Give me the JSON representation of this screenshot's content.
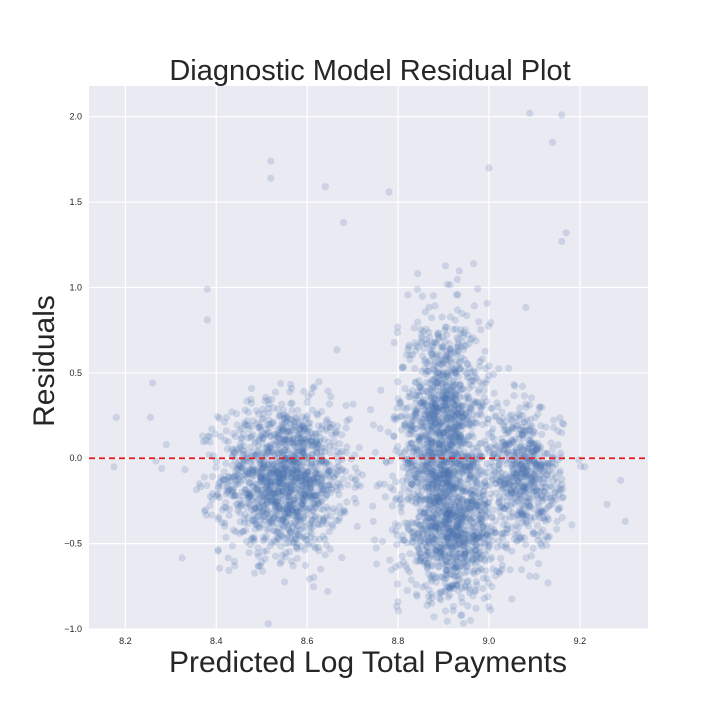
{
  "chart_data": {
    "type": "scatter",
    "title": "Diagnostic Model Residual Plot",
    "xlabel": "Predicted Log Total Payments",
    "ylabel": "Residuals",
    "xlim": [
      8.12,
      9.35
    ],
    "ylim": [
      -1.0,
      2.18
    ],
    "xticks": [
      "8.2",
      "8.4",
      "8.6",
      "8.8",
      "9.0",
      "9.2"
    ],
    "yticks": [
      "−1.0",
      "−0.5",
      "0.0",
      "0.5",
      "1.0",
      "1.5",
      "2.0"
    ],
    "grid": true,
    "legend": "none",
    "colors": {
      "points": "#4c72b0",
      "reference_line": "#e41a1c",
      "background": "#eaeaf2"
    },
    "reference_line": {
      "y": 0.0,
      "style": "dashed"
    },
    "clusters": [
      {
        "x_center": 8.55,
        "y_center": -0.12,
        "x_spread": 0.07,
        "y_spread": 0.22,
        "count": 1400
      },
      {
        "x_center": 8.9,
        "y_center": 0.12,
        "x_spread": 0.05,
        "y_spread": 0.35,
        "count": 1400
      },
      {
        "x_center": 8.92,
        "y_center": -0.45,
        "x_spread": 0.05,
        "y_spread": 0.18,
        "count": 700
      },
      {
        "x_center": 9.08,
        "y_center": -0.12,
        "x_spread": 0.04,
        "y_spread": 0.2,
        "count": 600
      }
    ],
    "points": [
      [
        8.18,
        0.24
      ],
      [
        8.175,
        -0.05
      ],
      [
        8.26,
        0.44
      ],
      [
        8.255,
        0.24
      ],
      [
        8.28,
        -0.06
      ],
      [
        8.29,
        0.08
      ],
      [
        8.52,
        1.74
      ],
      [
        8.52,
        1.64
      ],
      [
        8.64,
        1.59
      ],
      [
        8.68,
        1.38
      ],
      [
        8.78,
        1.56
      ],
      [
        9.0,
        1.7
      ],
      [
        9.09,
        2.02
      ],
      [
        9.16,
        2.01
      ],
      [
        9.14,
        1.85
      ],
      [
        9.16,
        1.27
      ],
      [
        9.17,
        1.32
      ],
      [
        9.29,
        -0.13
      ],
      [
        9.3,
        -0.37
      ],
      [
        9.26,
        -0.27
      ],
      [
        8.8,
        -0.84
      ],
      [
        8.63,
        -0.65
      ],
      [
        9.09,
        -0.69
      ],
      [
        9.13,
        -0.73
      ],
      [
        9.0,
        -0.87
      ],
      [
        8.38,
        0.99
      ],
      [
        8.38,
        0.81
      ]
    ]
  }
}
